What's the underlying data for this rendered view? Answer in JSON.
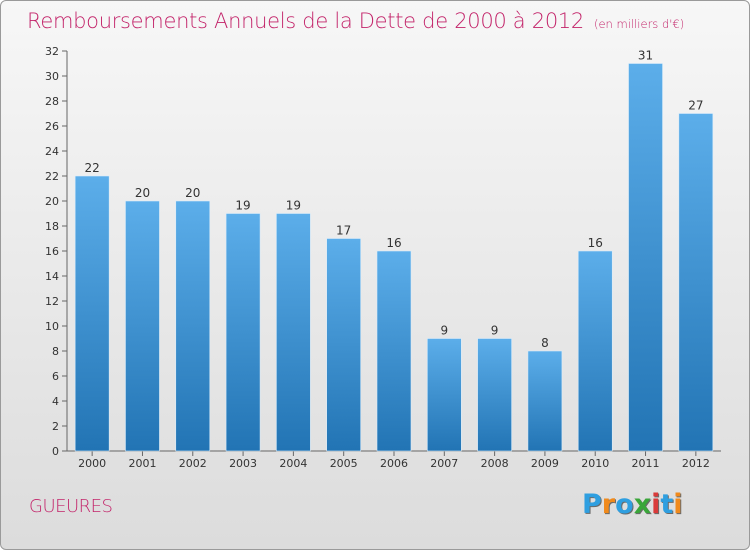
{
  "title": "Remboursements Annuels de la Dette de 2000 à 2012",
  "unit": "(en milliers d'€)",
  "commune": "GUEURES",
  "logo": {
    "letters": [
      "P",
      "r",
      "o",
      "x",
      "i",
      "t",
      "i"
    ],
    "colors": [
      "#2f9fe0",
      "#f08a1c",
      "#2f9fe0",
      "#3aa63a",
      "#d93a3a",
      "#2f9fe0",
      "#f08a1c"
    ]
  },
  "colors": {
    "title": "#c3246a",
    "bar_top": "#5caeea",
    "bar_bottom": "#2274b4",
    "axis": "#666666"
  },
  "chart_data": {
    "type": "bar",
    "categories": [
      "2000",
      "2001",
      "2002",
      "2003",
      "2004",
      "2005",
      "2006",
      "2007",
      "2008",
      "2009",
      "2010",
      "2011",
      "2012"
    ],
    "values": [
      22,
      20,
      20,
      19,
      19,
      17,
      16,
      9,
      9,
      8,
      16,
      31,
      27
    ],
    "ylim": [
      0,
      32
    ],
    "yticks": [
      0,
      2,
      4,
      6,
      8,
      10,
      12,
      14,
      16,
      18,
      20,
      22,
      24,
      26,
      28,
      30,
      32
    ],
    "grid": false,
    "data_labels": true
  }
}
